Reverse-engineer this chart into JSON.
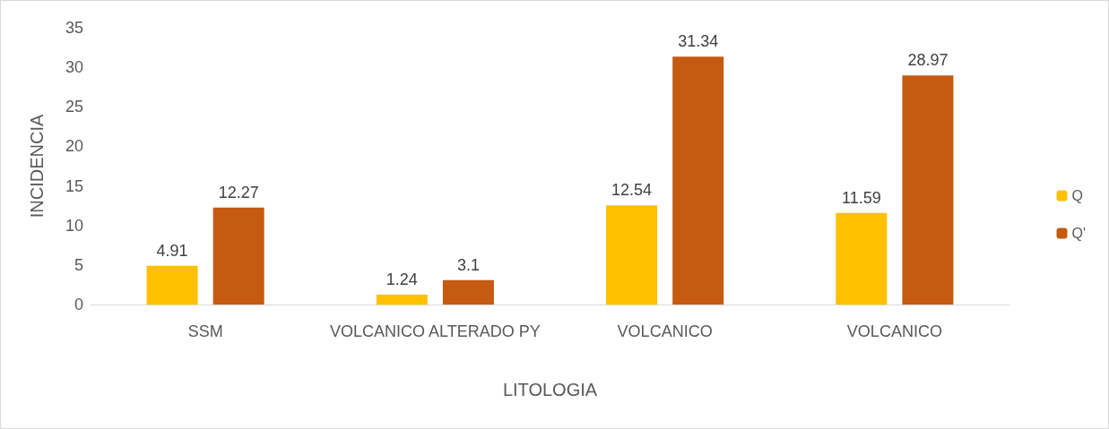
{
  "chart_data": {
    "type": "bar",
    "xlabel": "LITOLOGIA",
    "ylabel": "INCIDENCIA",
    "categories": [
      "SSM",
      "VOLCANICO ALTERADO PY",
      "VOLCANICO",
      "VOLCANICO"
    ],
    "series": [
      {
        "name": "Q",
        "color": "#ffc000",
        "values": [
          4.91,
          1.24,
          12.54,
          11.59
        ]
      },
      {
        "name": "Q'",
        "color": "#c55a11",
        "values": [
          12.27,
          3.1,
          31.34,
          28.97
        ]
      }
    ],
    "ylim": [
      0,
      35
    ],
    "yticks": [
      0,
      5,
      10,
      15,
      20,
      25,
      30,
      35
    ],
    "data_labels": true,
    "legend": "right",
    "grid": false
  }
}
